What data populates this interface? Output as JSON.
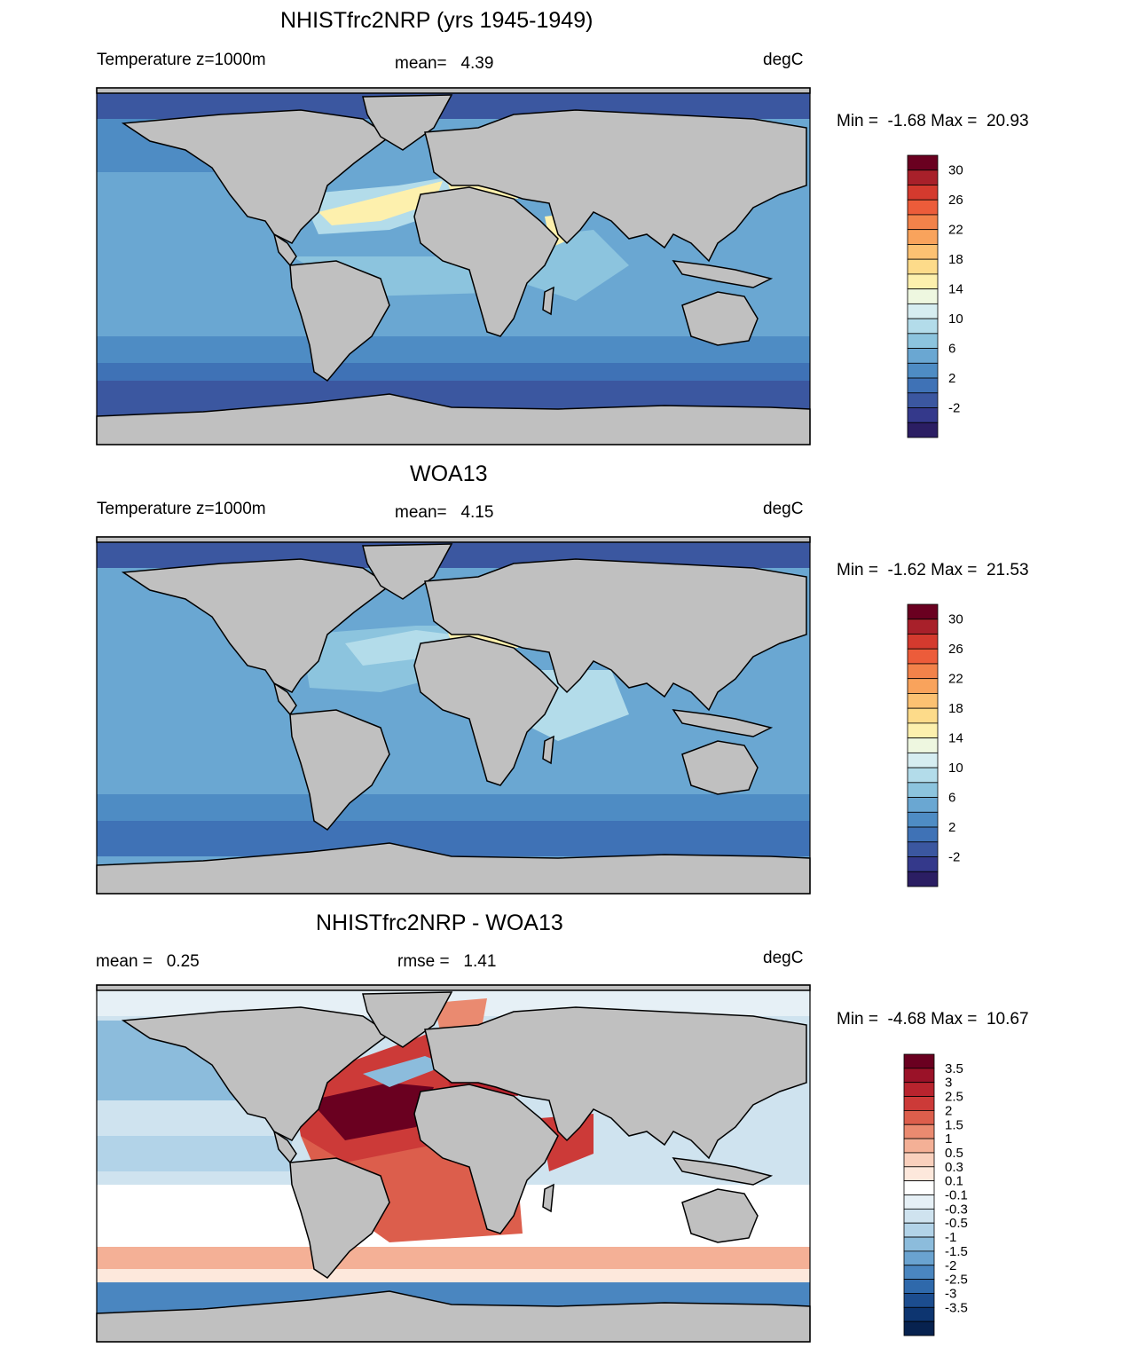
{
  "panels": [
    {
      "title": "NHISTfrc2NRP (yrs 1945-1949)",
      "left_label": "Temperature z=1000m",
      "center_label": "mean=   4.39",
      "units": "degC",
      "minmax": "Min =  -1.68 Max =  20.93",
      "colorbar_labels": [
        "30",
        "26",
        "22",
        "18",
        "14",
        "10",
        "6",
        "2",
        "-2"
      ]
    },
    {
      "title": "WOA13",
      "left_label": "Temperature z=1000m",
      "center_label": "mean=   4.15",
      "units": "degC",
      "minmax": "Min =  -1.62 Max =  21.53",
      "colorbar_labels": [
        "30",
        "26",
        "22",
        "18",
        "14",
        "10",
        "6",
        "2",
        "-2"
      ]
    },
    {
      "title": "NHISTfrc2NRP - WOA13",
      "left_label": "mean =   0.25",
      "center_label": "rmse =   1.41",
      "units": "degC",
      "minmax": "Min =  -4.68 Max =  10.67",
      "colorbar_labels": [
        "3.5",
        "3",
        "2.5",
        "2",
        "1.5",
        "1",
        "0.5",
        "0.3",
        "0.1",
        "-0.1",
        "-0.3",
        "-0.5",
        "-1",
        "-1.5",
        "-2",
        "-2.5",
        "-3",
        "-3.5"
      ]
    }
  ],
  "colors": {
    "temp_scale": [
      "#6a0020",
      "#a8202a",
      "#d43a2e",
      "#ec5c3a",
      "#f2824a",
      "#f9a35c",
      "#fcc172",
      "#fddb8a",
      "#fdf0ad",
      "#eef7e0",
      "#d6edf1",
      "#b3dcea",
      "#8cc4de",
      "#6aa7d2",
      "#4e8cc4",
      "#3f72b6",
      "#3b57a0",
      "#34398b",
      "#2b1e63"
    ],
    "diff_scale": [
      "#6a0020",
      "#9a1228",
      "#b8242e",
      "#cc3a38",
      "#dc5e4c",
      "#ea8a70",
      "#f4b096",
      "#f9d0bd",
      "#fde8dc",
      "#ffffff",
      "#e6f0f6",
      "#cfe3ef",
      "#b2d3e8",
      "#8cbcdc",
      "#6aa3d0",
      "#4a86c0",
      "#2f69ab",
      "#1c4d8f",
      "#0d3570",
      "#07224f"
    ],
    "land": "#c0c0c0",
    "coast": "#000000"
  }
}
